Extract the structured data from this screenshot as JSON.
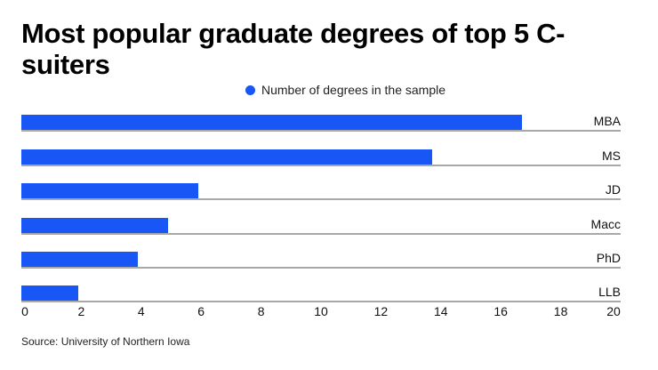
{
  "title": "Most popular graduate degrees of top 5 C-suiters",
  "legend": {
    "label": "Number of degrees in the sample",
    "color": "#1857f5"
  },
  "source": "Source: University of Northern Iowa",
  "chart_data": {
    "type": "bar",
    "orientation": "horizontal",
    "title": "Most popular graduate degrees of top 5 C-suiters",
    "categories": [
      "MBA",
      "MS",
      "JD",
      "Macc",
      "PhD",
      "LLB"
    ],
    "series": [
      {
        "name": "Number of degrees in the sample",
        "values": [
          16.7,
          13.7,
          5.9,
          4.9,
          3.9,
          1.9
        ],
        "color": "#1857f5"
      }
    ],
    "xlabel": "",
    "ylabel": "",
    "xlim": [
      0,
      20
    ],
    "xticks": [
      0,
      2,
      4,
      6,
      8,
      10,
      12,
      14,
      16,
      18,
      20
    ],
    "grid": false,
    "legend_position": "top-center",
    "source": "Source: University of Northern Iowa"
  }
}
